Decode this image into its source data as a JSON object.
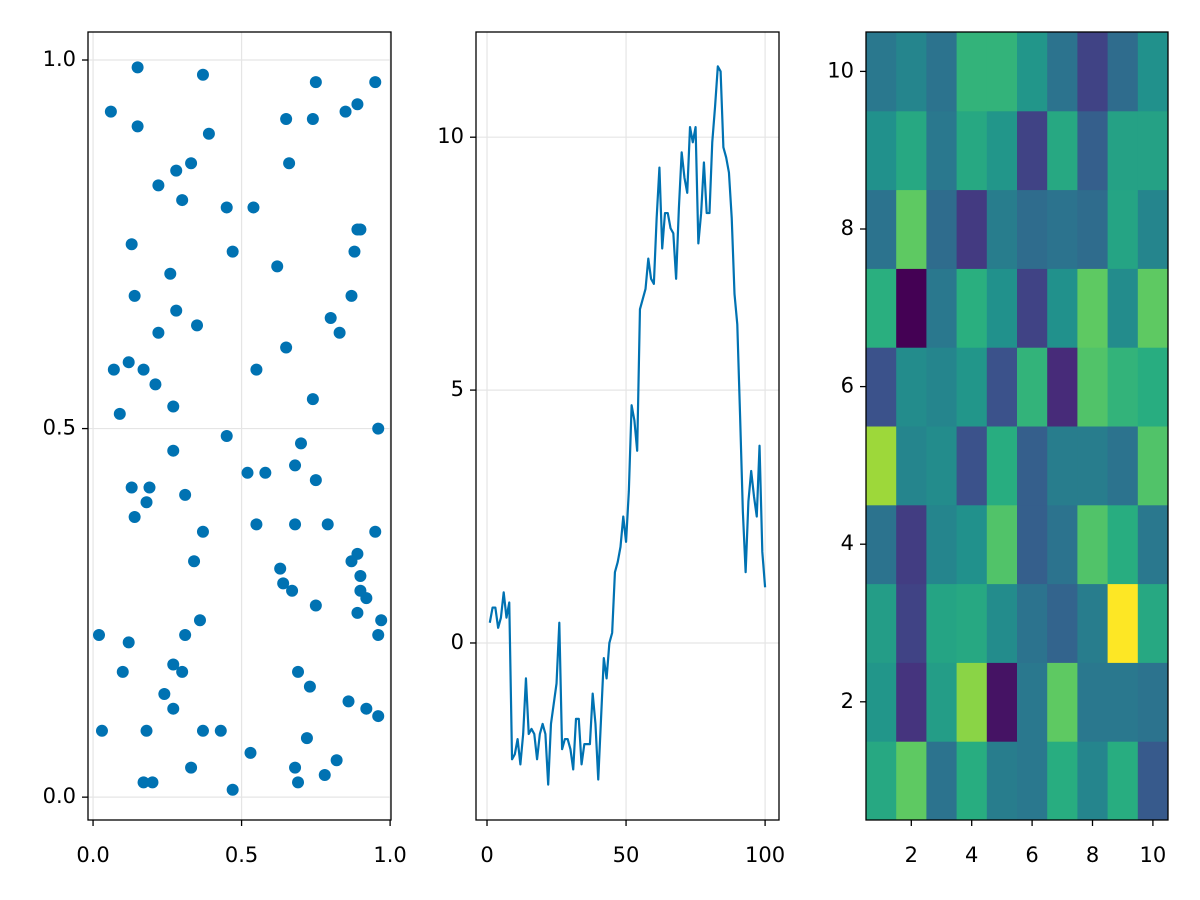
{
  "chart_data": [
    {
      "type": "scatter",
      "color": "#0072b2",
      "grid": true,
      "x": [
        0.15,
        0.37,
        0.06,
        0.15,
        0.39,
        0.65,
        0.75,
        0.95,
        0.89,
        0.85,
        0.74,
        0.66,
        0.33,
        0.28,
        0.22,
        0.3,
        0.45,
        0.54,
        0.89,
        0.9,
        0.13,
        0.47,
        0.88,
        0.62,
        0.26,
        0.14,
        0.87,
        0.28,
        0.8,
        0.22,
        0.35,
        0.83,
        0.65,
        0.07,
        0.12,
        0.17,
        0.55,
        0.21,
        0.74,
        0.09,
        0.27,
        0.96,
        0.45,
        0.7,
        0.27,
        0.68,
        0.58,
        0.52,
        0.75,
        0.13,
        0.19,
        0.18,
        0.31,
        0.14,
        0.37,
        0.55,
        0.68,
        0.79,
        0.95,
        0.89,
        0.87,
        0.34,
        0.63,
        0.9,
        0.64,
        0.9,
        0.67,
        0.92,
        0.89,
        0.75,
        0.36,
        0.97,
        0.02,
        0.31,
        0.96,
        0.12,
        0.27,
        0.1,
        0.3,
        0.69,
        0.73,
        0.24,
        0.27,
        0.86,
        0.92,
        0.96,
        0.03,
        0.18,
        0.37,
        0.43,
        0.72,
        0.53,
        0.82,
        0.33,
        0.68,
        0.78,
        0.17,
        0.2,
        0.69,
        0.47
      ],
      "values": [
        0.99,
        0.98,
        0.93,
        0.91,
        0.9,
        0.92,
        0.97,
        0.97,
        0.94,
        0.93,
        0.92,
        0.86,
        0.86,
        0.85,
        0.83,
        0.81,
        0.8,
        0.8,
        0.77,
        0.77,
        0.75,
        0.74,
        0.74,
        0.72,
        0.71,
        0.68,
        0.68,
        0.66,
        0.65,
        0.63,
        0.64,
        0.63,
        0.61,
        0.58,
        0.59,
        0.58,
        0.58,
        0.56,
        0.54,
        0.52,
        0.53,
        0.5,
        0.49,
        0.48,
        0.47,
        0.45,
        0.44,
        0.44,
        0.43,
        0.42,
        0.42,
        0.4,
        0.41,
        0.38,
        0.36,
        0.37,
        0.37,
        0.37,
        0.36,
        0.33,
        0.32,
        0.32,
        0.31,
        0.3,
        0.29,
        0.28,
        0.28,
        0.27,
        0.25,
        0.26,
        0.24,
        0.24,
        0.22,
        0.22,
        0.22,
        0.21,
        0.18,
        0.17,
        0.17,
        0.17,
        0.15,
        0.14,
        0.12,
        0.13,
        0.12,
        0.11,
        0.09,
        0.09,
        0.09,
        0.09,
        0.08,
        0.06,
        0.05,
        0.04,
        0.04,
        0.03,
        0.02,
        0.02,
        0.02,
        0.01
      ],
      "xlim": [
        -0.017,
        1.003
      ],
      "ylim": [
        -0.031,
        1.038
      ],
      "xticks": [
        {
          "value": 0,
          "label": "0.0"
        },
        {
          "value": 0.5,
          "label": "0.5"
        },
        {
          "value": 1,
          "label": "1.0"
        }
      ],
      "yticks": [
        {
          "value": 0,
          "label": "0.0"
        },
        {
          "value": 0.5,
          "label": "0.5"
        },
        {
          "value": 1,
          "label": "1.0"
        }
      ]
    },
    {
      "type": "line",
      "color": "#0072b2",
      "grid": true,
      "x": [
        1,
        2,
        3,
        4,
        5,
        6,
        7,
        8,
        9,
        10,
        11,
        12,
        13,
        14,
        15,
        16,
        17,
        18,
        19,
        20,
        21,
        22,
        23,
        24,
        25,
        26,
        27,
        28,
        29,
        30,
        31,
        32,
        33,
        34,
        35,
        36,
        37,
        38,
        39,
        40,
        41,
        42,
        43,
        44,
        45,
        46,
        47,
        48,
        49,
        50,
        51,
        52,
        53,
        54,
        55,
        56,
        57,
        58,
        59,
        60,
        61,
        62,
        63,
        64,
        65,
        66,
        67,
        68,
        69,
        70,
        71,
        72,
        73,
        74,
        75,
        76,
        77,
        78,
        79,
        80,
        81,
        82,
        83,
        84,
        85,
        86,
        87,
        88,
        89,
        90,
        91,
        92,
        93,
        94,
        95,
        96,
        97,
        98,
        99,
        100
      ],
      "values": [
        0.4,
        0.7,
        0.7,
        0.3,
        0.5,
        1.0,
        0.5,
        0.8,
        -2.3,
        -2.2,
        -1.9,
        -2.4,
        -1.8,
        -0.7,
        -1.8,
        -1.7,
        -1.8,
        -2.3,
        -1.8,
        -1.6,
        -1.8,
        -2.8,
        -1.6,
        -1.2,
        -0.8,
        0.4,
        -2.1,
        -1.9,
        -1.9,
        -2.1,
        -2.5,
        -1.5,
        -1.5,
        -2.4,
        -2.0,
        -2.0,
        -2.0,
        -1.0,
        -1.6,
        -2.7,
        -1.5,
        -0.3,
        -0.7,
        0.0,
        0.2,
        1.4,
        1.6,
        1.9,
        2.5,
        2.0,
        3.0,
        4.7,
        4.4,
        3.8,
        6.6,
        6.8,
        7.0,
        7.6,
        7.2,
        7.1,
        8.4,
        9.4,
        7.8,
        8.5,
        8.5,
        8.2,
        8.1,
        7.2,
        8.6,
        9.7,
        9.2,
        8.9,
        10.2,
        9.9,
        10.2,
        7.9,
        8.5,
        9.5,
        8.5,
        8.5,
        9.9,
        10.6,
        11.4,
        11.3,
        9.8,
        9.6,
        9.3,
        8.4,
        6.9,
        6.3,
        4.5,
        2.6,
        1.4,
        2.8,
        3.4,
        2.9,
        2.5,
        3.9,
        1.8,
        1.1
      ],
      "xlim": [
        -3.96,
        105
      ],
      "ylim": [
        -3.5,
        12.08
      ],
      "xticks": [
        0,
        50,
        100
      ],
      "yticks": [
        0,
        5,
        10
      ]
    },
    {
      "type": "heatmap",
      "colormap": "viridis",
      "grid": false,
      "x": [
        1,
        2,
        3,
        4,
        5,
        6,
        7,
        8,
        9,
        10
      ],
      "y": [
        1,
        2,
        3,
        4,
        5,
        6,
        7,
        8,
        9,
        10
      ],
      "values": [
        [
          0.6,
          0.75,
          0.38,
          0.62,
          0.42,
          0.4,
          0.62,
          0.45,
          0.62,
          0.28
        ],
        [
          0.52,
          0.15,
          0.55,
          0.82,
          0.05,
          0.4,
          0.75,
          0.4,
          0.4,
          0.38
        ],
        [
          0.55,
          0.2,
          0.58,
          0.6,
          0.48,
          0.38,
          0.32,
          0.42,
          1.0,
          0.6
        ],
        [
          0.38,
          0.18,
          0.45,
          0.5,
          0.72,
          0.3,
          0.38,
          0.72,
          0.62,
          0.4
        ],
        [
          0.85,
          0.45,
          0.48,
          0.25,
          0.62,
          0.3,
          0.42,
          0.42,
          0.38,
          0.72
        ],
        [
          0.25,
          0.48,
          0.45,
          0.52,
          0.25,
          0.65,
          0.12,
          0.72,
          0.65,
          0.62
        ],
        [
          0.63,
          0.0,
          0.4,
          0.63,
          0.5,
          0.2,
          0.5,
          0.75,
          0.48,
          0.75
        ],
        [
          0.38,
          0.75,
          0.35,
          0.17,
          0.42,
          0.35,
          0.38,
          0.35,
          0.58,
          0.45
        ],
        [
          0.5,
          0.6,
          0.4,
          0.6,
          0.52,
          0.2,
          0.6,
          0.3,
          0.57,
          0.57
        ],
        [
          0.4,
          0.45,
          0.38,
          0.65,
          0.65,
          0.52,
          0.38,
          0.2,
          0.35,
          0.5
        ]
      ],
      "xlim": [
        0.5,
        10.5
      ],
      "ylim": [
        0.5,
        10.5
      ],
      "xticks": [
        2,
        4,
        6,
        8,
        10
      ],
      "yticks": [
        2,
        4,
        6,
        8,
        10
      ]
    }
  ]
}
